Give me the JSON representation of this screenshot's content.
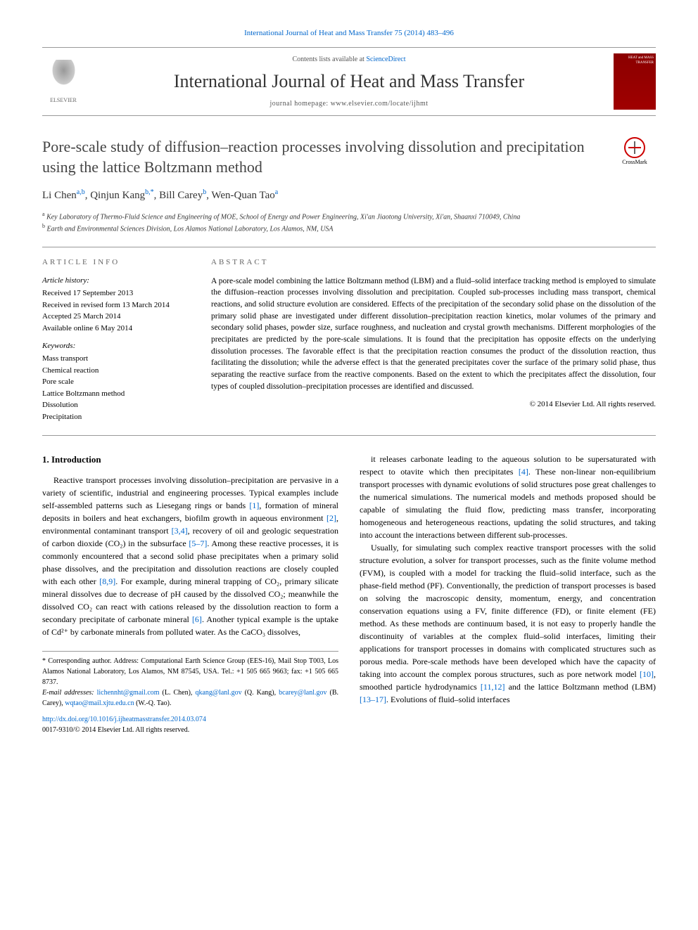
{
  "top_citation": "International Journal of Heat and Mass Transfer 75 (2014) 483–496",
  "header": {
    "contents_prefix": "Contents lists available at ",
    "contents_link": "ScienceDirect",
    "journal_title": "International Journal of Heat and Mass Transfer",
    "homepage_prefix": "journal homepage: ",
    "homepage_url": "www.elsevier.com/locate/ijhmt",
    "publisher_name": "ELSEVIER",
    "cover_text": "HEAT and MASS TRANSFER"
  },
  "crossmark_label": "CrossMark",
  "article": {
    "title": "Pore-scale study of diffusion–reaction processes involving dissolution and precipitation using the lattice Boltzmann method",
    "authors_html": "Li Chen",
    "authors": [
      {
        "name": "Li Chen",
        "sup": "a,b"
      },
      {
        "name": "Qinjun Kang",
        "sup": "b,*"
      },
      {
        "name": "Bill Carey",
        "sup": "b"
      },
      {
        "name": "Wen-Quan Tao",
        "sup": "a"
      }
    ],
    "affiliations": [
      {
        "sup": "a",
        "text": "Key Laboratory of Thermo-Fluid Science and Engineering of MOE, School of Energy and Power Engineering, Xi'an Jiaotong University, Xi'an, Shaanxi 710049, China"
      },
      {
        "sup": "b",
        "text": "Earth and Environmental Sciences Division, Los Alamos National Laboratory, Los Alamos, NM, USA"
      }
    ]
  },
  "info": {
    "label": "article info",
    "history_head": "Article history:",
    "history": "Received 17 September 2013\nReceived in revised form 13 March 2014\nAccepted 25 March 2014\nAvailable online 6 May 2014",
    "keywords_head": "Keywords:",
    "keywords": "Mass transport\nChemical reaction\nPore scale\nLattice Boltzmann method\nDissolution\nPrecipitation"
  },
  "abstract": {
    "label": "abstract",
    "text": "A pore-scale model combining the lattice Boltzmann method (LBM) and a fluid–solid interface tracking method is employed to simulate the diffusion–reaction processes involving dissolution and precipitation. Coupled sub-processes including mass transport, chemical reactions, and solid structure evolution are considered. Effects of the precipitation of the secondary solid phase on the dissolution of the primary solid phase are investigated under different dissolution–precipitation reaction kinetics, molar volumes of the primary and secondary solid phases, powder size, surface roughness, and nucleation and crystal growth mechanisms. Different morphologies of the precipitates are predicted by the pore-scale simulations. It is found that the precipitation has opposite effects on the underlying dissolution processes. The favorable effect is that the precipitation reaction consumes the product of the dissolution reaction, thus facilitating the dissolution; while the adverse effect is that the generated precipitates cover the surface of the primary solid phase, thus separating the reactive surface from the reactive components. Based on the extent to which the precipitates affect the dissolution, four types of coupled dissolution–precipitation processes are identified and discussed.",
    "copyright": "© 2014 Elsevier Ltd. All rights reserved."
  },
  "body": {
    "section_heading": "1. Introduction",
    "col1_p1": "Reactive transport processes involving dissolution–precipitation are pervasive in a variety of scientific, industrial and engineering processes. Typical examples include self-assembled patterns such as Liesegang rings or bands [1], formation of mineral deposits in boilers and heat exchangers, biofilm growth in aqueous environment [2], environmental contaminant transport [3,4], recovery of oil and geologic sequestration of carbon dioxide (CO₂) in the subsurface [5–7]. Among these reactive processes, it is commonly encountered that a second solid phase precipitates when a primary solid phase dissolves, and the precipitation and dissolution reactions are closely coupled with each other [8,9]. For example, during mineral trapping of CO₂, primary silicate mineral dissolves due to decrease of pH caused by the dissolved CO₂; meanwhile the dissolved CO₂ can react with cations released by the dissolution reaction to form a secondary precipitate of carbonate mineral [6]. Another typical example is the uptake of Cd²⁺ by carbonate minerals from polluted water. As the CaCO₃ dissolves,",
    "col2_p1": "it releases carbonate leading to the aqueous solution to be supersaturated with respect to otavite which then precipitates [4]. These non-linear non-equilibrium transport processes with dynamic evolutions of solid structures pose great challenges to the numerical simulations. The numerical models and methods proposed should be capable of simulating the fluid flow, predicting mass transfer, incorporating homogeneous and heterogeneous reactions, updating the solid structures, and taking into account the interactions between different sub-processes.",
    "col2_p2": "Usually, for simulating such complex reactive transport processes with the solid structure evolution, a solver for transport processes, such as the finite volume method (FVM), is coupled with a model for tracking the fluid–solid interface, such as the phase-field method (PF). Conventionally, the prediction of transport processes is based on solving the macroscopic density, momentum, energy, and concentration conservation equations using a FV, finite difference (FD), or finite element (FE) method. As these methods are continuum based, it is not easy to properly handle the discontinuity of variables at the complex fluid–solid interfaces, limiting their applications for transport processes in domains with complicated structures such as porous media. Pore-scale methods have been developed which have the capacity of taking into account the complex porous structures, such as pore network model [10], smoothed particle hydrodynamics [11,12] and the lattice Boltzmann method (LBM) [13–17]. Evolutions of fluid–solid interfaces"
  },
  "footnotes": {
    "corresponding": "* Corresponding author. Address: Computational Earth Science Group (EES-16), Mail Stop T003, Los Alamos National Laboratory, Los Alamos, NM 87545, USA. Tel.: +1 505 665 9663; fax: +1 505 665 8737.",
    "email_label": "E-mail addresses: ",
    "emails": "lichennht@gmail.com (L. Chen), qkang@lanl.gov (Q. Kang), bcarey@lanl.gov (B. Carey), wqtao@mail.xjtu.edu.cn (W.-Q. Tao)."
  },
  "doi": {
    "url": "http://dx.doi.org/10.1016/j.ijheatmasstransfer.2014.03.074",
    "issn_line": "0017-9310/© 2014 Elsevier Ltd. All rights reserved."
  },
  "colors": {
    "link": "#0066cc",
    "text": "#000000",
    "cover_bg": "#8b0000"
  }
}
